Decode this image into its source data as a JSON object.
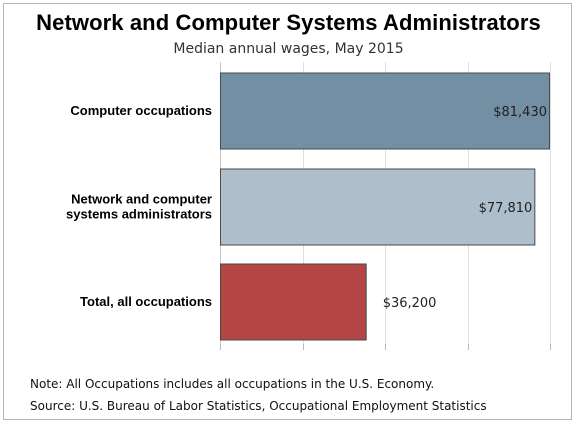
{
  "chart_data": {
    "type": "bar",
    "orientation": "horizontal",
    "title": "Network and Computer Systems Administrators",
    "subtitle": "Median annual wages, May 2015",
    "categories": [
      [
        "Computer occupations"
      ],
      [
        "Network and computer",
        "systems administrators"
      ],
      [
        "Total, all occupations"
      ]
    ],
    "values": [
      81430,
      77810,
      36200
    ],
    "value_labels": [
      "$81,430",
      "$77,810",
      "$36,200"
    ],
    "colors": [
      "#728fa4",
      "#aebfcb",
      "#b54444"
    ],
    "xlim": [
      0,
      81430
    ],
    "grid": true
  },
  "notes": {
    "note": "Note: All Occupations includes all occupations in the U.S. Economy.",
    "source": "Source: U.S. Bureau of Labor Statistics, Occupational Employment Statistics"
  }
}
